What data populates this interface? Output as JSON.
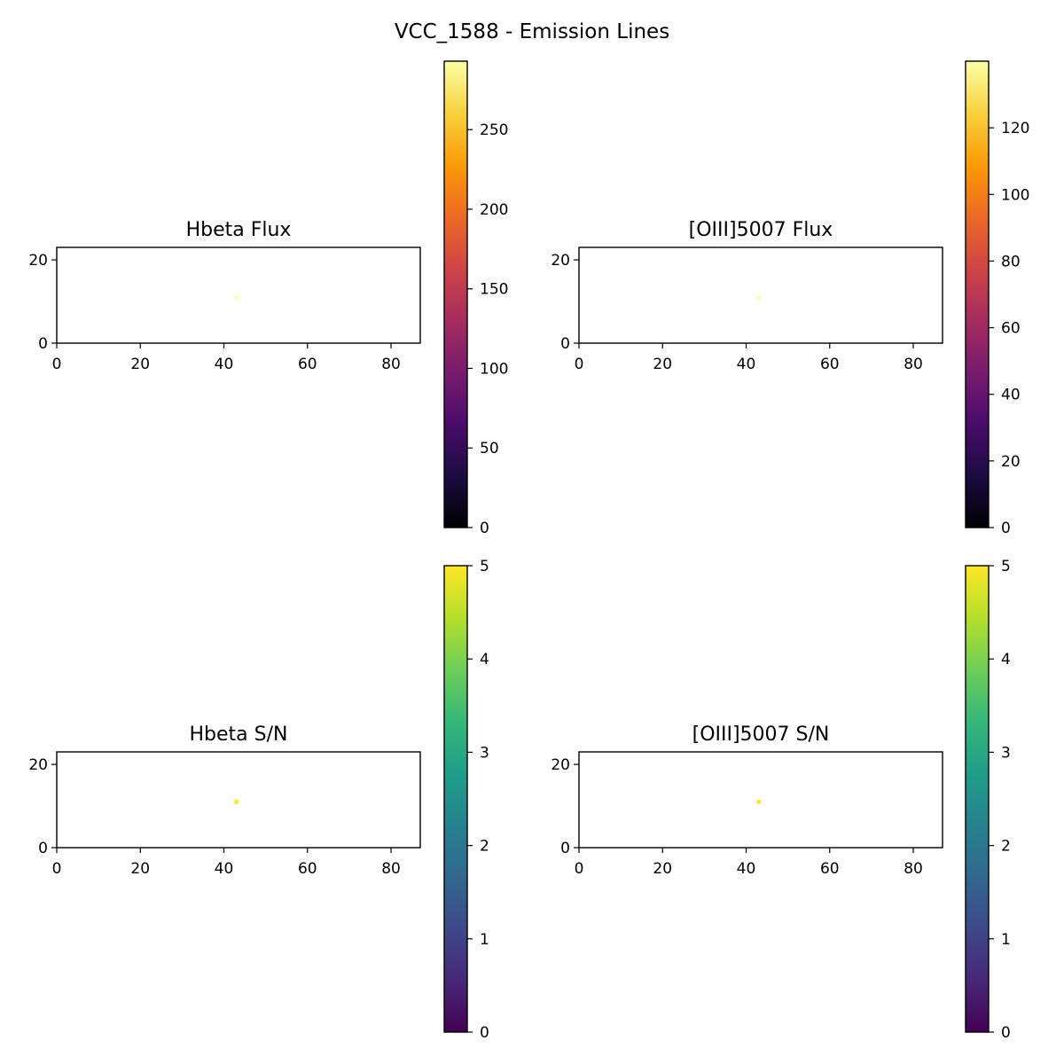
{
  "figure": {
    "suptitle": "VCC_1588 - Emission Lines"
  },
  "chart_data": [
    {
      "type": "heatmap",
      "title": "Hbeta Flux",
      "xlim": [
        0,
        87
      ],
      "ylim": [
        0,
        23
      ],
      "xticks": [
        0,
        20,
        40,
        60,
        80
      ],
      "yticks": [
        0,
        20
      ],
      "colormap": "inferno",
      "clim": [
        0,
        293
      ],
      "colorbar_ticks": [
        0,
        50,
        100,
        150,
        200,
        250
      ],
      "pixels": [
        {
          "x": 43,
          "y": 11,
          "value": 293
        }
      ]
    },
    {
      "type": "heatmap",
      "title": "[OIII]5007 Flux",
      "xlim": [
        0,
        87
      ],
      "ylim": [
        0,
        23
      ],
      "xticks": [
        0,
        20,
        40,
        60,
        80
      ],
      "yticks": [
        0,
        20
      ],
      "colormap": "inferno",
      "clim": [
        0,
        140
      ],
      "colorbar_ticks": [
        0,
        20,
        40,
        60,
        80,
        100,
        120
      ],
      "pixels": [
        {
          "x": 43,
          "y": 11,
          "value": 140
        }
      ]
    },
    {
      "type": "heatmap",
      "title": "Hbeta S/N",
      "xlim": [
        0,
        87
      ],
      "ylim": [
        0,
        23
      ],
      "xticks": [
        0,
        20,
        40,
        60,
        80
      ],
      "yticks": [
        0,
        20
      ],
      "colormap": "viridis",
      "clim": [
        0,
        5
      ],
      "colorbar_ticks": [
        0,
        1,
        2,
        3,
        4,
        5
      ],
      "pixels": [
        {
          "x": 43,
          "y": 11,
          "value": 5
        }
      ]
    },
    {
      "type": "heatmap",
      "title": "[OIII]5007 S/N",
      "xlim": [
        0,
        87
      ],
      "ylim": [
        0,
        23
      ],
      "xticks": [
        0,
        20,
        40,
        60,
        80
      ],
      "yticks": [
        0,
        20
      ],
      "colormap": "viridis",
      "clim": [
        0,
        5
      ],
      "colorbar_ticks": [
        0,
        1,
        2,
        3,
        4,
        5
      ],
      "pixels": [
        {
          "x": 43,
          "y": 11,
          "value": 5
        }
      ]
    }
  ]
}
